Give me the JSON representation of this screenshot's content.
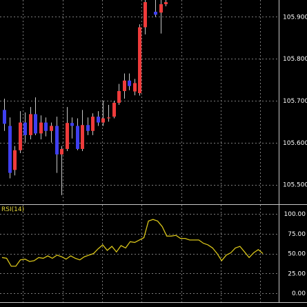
{
  "colors": {
    "background": "#000000",
    "grid": "#7d7d7d",
    "frame": "#c8c8c8",
    "separator": "#c8c8c8",
    "axis_text": "#ffffff",
    "bull_body": "#ee3b3b",
    "bear_body": "#3f3ff0",
    "wick": "#c8c8c8",
    "rsi_line": "#d9c51a",
    "rsi_label": "#e6d73a"
  },
  "chart_data": [
    {
      "type": "candlestick",
      "title": "",
      "ylim": [
        105.455,
        105.94
      ],
      "y_ticks": [
        105.5,
        105.6,
        105.7,
        105.8,
        105.9
      ],
      "y_tick_labels": [
        "105.500",
        "105.600",
        "105.700",
        "105.800",
        "105.900"
      ],
      "grid": true,
      "x_grid_count": 7,
      "candles": [
        {
          "o": 105.678,
          "h": 105.705,
          "l": 105.628,
          "c": 105.645
        },
        {
          "o": 105.64,
          "h": 105.66,
          "l": 105.515,
          "c": 105.528
        },
        {
          "o": 105.535,
          "h": 105.592,
          "l": 105.522,
          "c": 105.582
        },
        {
          "o": 105.582,
          "h": 105.675,
          "l": 105.575,
          "c": 105.648
        },
        {
          "o": 105.648,
          "h": 105.672,
          "l": 105.6,
          "c": 105.618
        },
        {
          "o": 105.618,
          "h": 105.685,
          "l": 105.608,
          "c": 105.668
        },
        {
          "o": 105.668,
          "h": 105.708,
          "l": 105.618,
          "c": 105.622
        },
        {
          "o": 105.622,
          "h": 105.665,
          "l": 105.608,
          "c": 105.648
        },
        {
          "o": 105.648,
          "h": 105.66,
          "l": 105.615,
          "c": 105.628
        },
        {
          "o": 105.628,
          "h": 105.648,
          "l": 105.6,
          "c": 105.64
        },
        {
          "o": 105.64,
          "h": 105.662,
          "l": 105.528,
          "c": 105.572
        },
        {
          "o": 105.572,
          "h": 105.592,
          "l": 105.475,
          "c": 105.585
        },
        {
          "o": 105.585,
          "h": 105.685,
          "l": 105.58,
          "c": 105.647
        },
        {
          "o": 105.647,
          "h": 105.66,
          "l": 105.61,
          "c": 105.64
        },
        {
          "o": 105.64,
          "h": 105.658,
          "l": 105.582,
          "c": 105.585
        },
        {
          "o": 105.585,
          "h": 105.678,
          "l": 105.58,
          "c": 105.642
        },
        {
          "o": 105.642,
          "h": 105.66,
          "l": 105.618,
          "c": 105.628
        },
        {
          "o": 105.628,
          "h": 105.67,
          "l": 105.618,
          "c": 105.662
        },
        {
          "o": 105.662,
          "h": 105.675,
          "l": 105.64,
          "c": 105.648
        },
        {
          "o": 105.648,
          "h": 105.7,
          "l": 105.64,
          "c": 105.658
        },
        {
          "o": 105.658,
          "h": 105.69,
          "l": 105.65,
          "c": 105.66
        },
        {
          "o": 105.662,
          "h": 105.7,
          "l": 105.658,
          "c": 105.695
        },
        {
          "o": 105.695,
          "h": 105.74,
          "l": 105.69,
          "c": 105.723
        },
        {
          "o": 105.723,
          "h": 105.765,
          "l": 105.705,
          "c": 105.748
        },
        {
          "o": 105.748,
          "h": 105.765,
          "l": 105.725,
          "c": 105.735
        },
        {
          "o": 105.722,
          "h": 105.752,
          "l": 105.713,
          "c": 105.742
        },
        {
          "o": 105.718,
          "h": 105.882,
          "l": 105.712,
          "c": 105.875
        },
        {
          "o": 105.875,
          "h": 105.94,
          "l": 105.858,
          "c": 105.935
        },
        {
          "o": null,
          "h": null,
          "l": null,
          "c": null
        },
        {
          "o": 105.912,
          "h": 105.94,
          "l": 105.9,
          "c": 105.905
        },
        {
          "o": 105.91,
          "h": 105.94,
          "l": 105.86,
          "c": 105.93
        },
        {
          "o": 105.93,
          "h": 105.94,
          "l": 105.925,
          "c": 105.935
        }
      ]
    },
    {
      "type": "line",
      "title": "RSI(14)",
      "ylim": [
        0,
        100
      ],
      "y_ticks": [
        0,
        25,
        50,
        75,
        100
      ],
      "y_tick_labels": [
        "0.00",
        "25.00",
        "50.00",
        "75.00",
        "100.00"
      ],
      "grid": true,
      "series": [
        {
          "name": "RSI(14)",
          "values": [
            45,
            44,
            34,
            34,
            42,
            43,
            40,
            41,
            45,
            44,
            47,
            44,
            48,
            46,
            43,
            47,
            44,
            42,
            46,
            48,
            50,
            56,
            61,
            54,
            59,
            52,
            60,
            57,
            65,
            64,
            67,
            70,
            91,
            93,
            91,
            84,
            72,
            72,
            73,
            69,
            69,
            67,
            67,
            67,
            63,
            61,
            57,
            50,
            41,
            48,
            51,
            57,
            59,
            52,
            45,
            51,
            55,
            50
          ]
        }
      ]
    }
  ]
}
